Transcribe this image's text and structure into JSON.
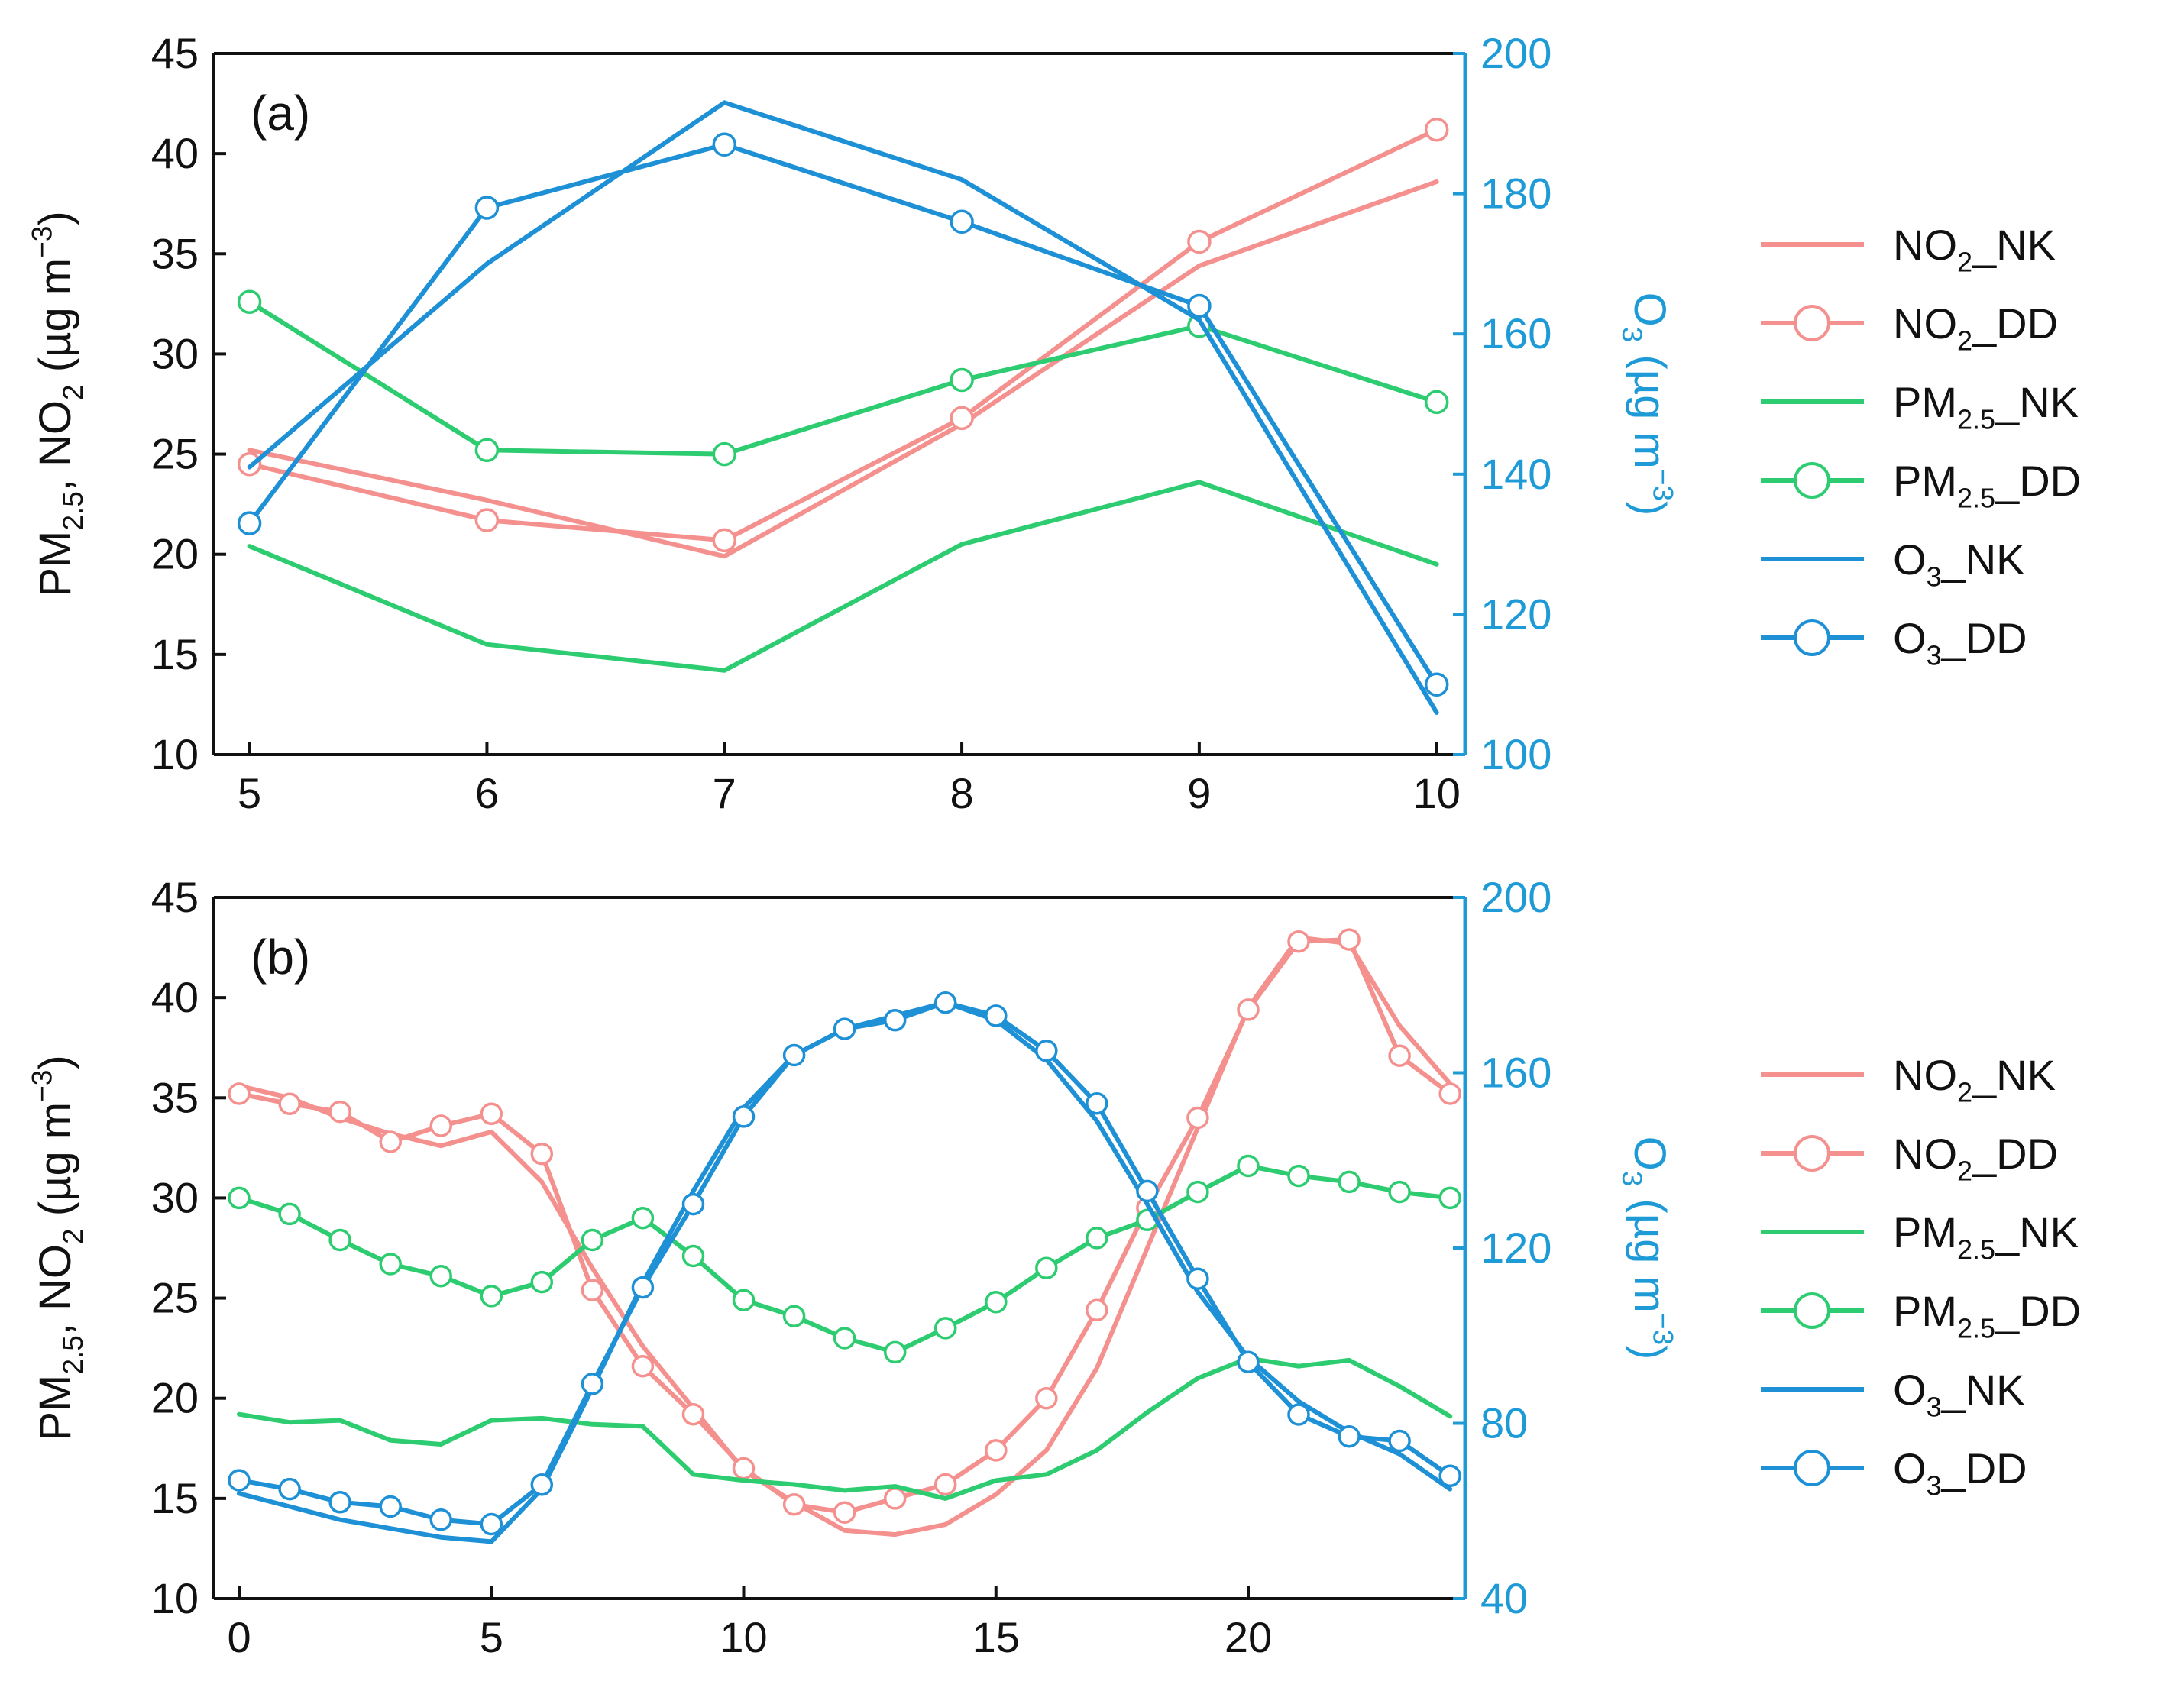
{
  "chart_data": [
    {
      "type": "line",
      "panel_label": "(a)",
      "x": [
        5,
        6,
        7,
        8,
        9,
        10
      ],
      "xlim": [
        4.85,
        10.12
      ],
      "xticks": [
        5,
        6,
        7,
        8,
        9,
        10
      ],
      "ylim": [
        10,
        45
      ],
      "yticks": [
        10,
        15,
        20,
        25,
        30,
        35,
        40,
        45
      ],
      "y2lim": [
        100,
        200
      ],
      "y2ticks": [
        100,
        120,
        140,
        160,
        180,
        200
      ],
      "ylabel_parts": [
        "PM",
        "2.5",
        ", NO",
        "2",
        "  (µg m",
        "−3",
        ")"
      ],
      "y2label_parts": [
        "O",
        "3",
        " (µg m",
        "−3",
        ")"
      ],
      "series": [
        {
          "name": "NO2_NK",
          "label": [
            "NO",
            "2",
            "_NK"
          ],
          "axis": "left",
          "color": "#F4908E",
          "marker": false,
          "values": [
            25.2,
            22.7,
            19.9,
            26.5,
            34.4,
            38.6
          ]
        },
        {
          "name": "NO2_DD",
          "label": [
            "NO",
            "2",
            "_DD"
          ],
          "axis": "left",
          "color": "#F4908E",
          "marker": true,
          "values": [
            24.5,
            21.7,
            20.7,
            26.8,
            35.6,
            41.2
          ]
        },
        {
          "name": "PM2.5_NK",
          "label": [
            "PM",
            "2.5",
            "_NK"
          ],
          "axis": "left",
          "color": "#2ECC71",
          "marker": false,
          "values": [
            20.4,
            15.5,
            14.2,
            20.5,
            23.6,
            19.5
          ]
        },
        {
          "name": "PM2.5_DD",
          "label": [
            "PM",
            "2.5",
            "_DD"
          ],
          "axis": "left",
          "color": "#2ECC71",
          "marker": true,
          "values": [
            32.6,
            25.2,
            25.0,
            28.7,
            31.4,
            27.6
          ]
        },
        {
          "name": "O3_NK",
          "label": [
            "O",
            "3",
            "_NK"
          ],
          "axis": "right",
          "color": "#1E90D6",
          "marker": false,
          "values": [
            141,
            170,
            193,
            182,
            162,
            106
          ]
        },
        {
          "name": "O3_DD",
          "label": [
            "O",
            "3",
            "_DD"
          ],
          "axis": "right",
          "color": "#1E90D6",
          "marker": true,
          "values": [
            133,
            178,
            187,
            176,
            164,
            110
          ]
        }
      ]
    },
    {
      "type": "line",
      "panel_label": "(b)",
      "x": [
        0,
        1,
        2,
        3,
        4,
        5,
        6,
        7,
        8,
        9,
        10,
        11,
        12,
        13,
        14,
        15,
        16,
        17,
        18,
        19,
        20,
        21,
        22,
        23,
        24
      ],
      "xlim": [
        -0.5,
        24.3
      ],
      "xticks": [
        0,
        5,
        10,
        15,
        20
      ],
      "ylim": [
        10,
        45
      ],
      "yticks": [
        10,
        15,
        20,
        25,
        30,
        35,
        40,
        45
      ],
      "y2lim": [
        40,
        200
      ],
      "y2ticks": [
        40,
        80,
        120,
        160,
        200
      ],
      "ylabel_parts": [
        "PM",
        "2.5",
        ", NO",
        "2",
        " (µg m",
        "−3",
        ")"
      ],
      "y2label_parts": [
        "O",
        "3",
        " (µg m",
        "−3",
        ")"
      ],
      "series": [
        {
          "name": "NO2_NK",
          "label": [
            "NO",
            "2",
            "_NK"
          ],
          "axis": "left",
          "color": "#F4908E",
          "marker": false,
          "values": [
            35.6,
            35.0,
            34.0,
            33.2,
            32.6,
            33.3,
            30.8,
            26.5,
            22.6,
            19.5,
            16.4,
            14.8,
            13.4,
            13.2,
            13.7,
            15.2,
            17.4,
            21.5,
            27.5,
            33.5,
            39.5,
            43.0,
            42.7,
            38.6,
            35.7
          ]
        },
        {
          "name": "NO2_DD",
          "label": [
            "NO",
            "2",
            "_DD"
          ],
          "axis": "left",
          "color": "#F4908E",
          "marker": true,
          "values": [
            35.2,
            34.7,
            34.3,
            32.8,
            33.6,
            34.2,
            32.2,
            25.4,
            21.6,
            19.2,
            16.5,
            14.7,
            14.3,
            15.0,
            15.7,
            17.4,
            20.0,
            24.4,
            29.5,
            34.0,
            39.4,
            42.8,
            42.9,
            37.1,
            35.2
          ]
        },
        {
          "name": "PM2.5_NK",
          "label": [
            "PM",
            "2.5",
            "_NK"
          ],
          "axis": "left",
          "color": "#2ECC71",
          "marker": false,
          "values": [
            19.2,
            18.8,
            18.9,
            17.9,
            17.7,
            18.9,
            19.0,
            18.7,
            18.6,
            16.2,
            15.9,
            15.7,
            15.4,
            15.6,
            15.0,
            15.9,
            16.2,
            17.4,
            19.3,
            21.0,
            22.0,
            21.6,
            21.9,
            20.6,
            19.1
          ]
        },
        {
          "name": "PM2.5_DD",
          "label": [
            "PM",
            "2.5",
            "_DD"
          ],
          "axis": "left",
          "color": "#2ECC71",
          "marker": true,
          "values": [
            30.0,
            29.2,
            27.9,
            26.7,
            26.1,
            25.1,
            25.8,
            27.9,
            29.0,
            27.1,
            24.9,
            24.1,
            23.0,
            22.3,
            23.5,
            24.8,
            26.5,
            28.0,
            28.9,
            30.3,
            31.6,
            31.1,
            30.8,
            30.3,
            30.0
          ]
        },
        {
          "name": "O3_NK",
          "label": [
            "O",
            "3",
            "_NK"
          ],
          "axis": "right",
          "color": "#1E90D6",
          "marker": false,
          "values": [
            64,
            61,
            58,
            56,
            54,
            53,
            65,
            88,
            112,
            133,
            152,
            164,
            170,
            173,
            176,
            172,
            163,
            149,
            130,
            110,
            95,
            85,
            78,
            73,
            65
          ]
        },
        {
          "name": "O3_DD",
          "label": [
            "O",
            "3",
            "_DD"
          ],
          "axis": "right",
          "color": "#1E90D6",
          "marker": true,
          "values": [
            67,
            65,
            62,
            61,
            58,
            57,
            66,
            89,
            111,
            130,
            150,
            164,
            170,
            172,
            176,
            173,
            165,
            153,
            133,
            113,
            94,
            82,
            77,
            76,
            68
          ]
        }
      ]
    }
  ]
}
